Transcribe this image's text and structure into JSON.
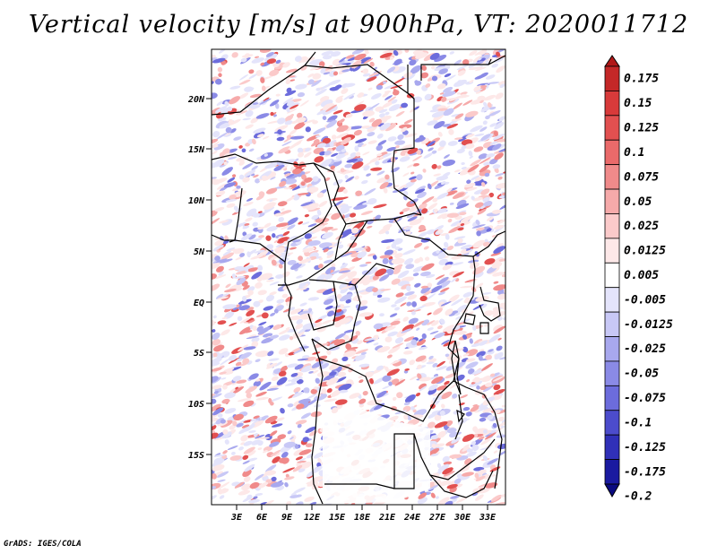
{
  "title": "Vertical velocity [m/s] at 900hPa, VT: 2020011712",
  "credit": "GrADS: IGES/COLA",
  "map": {
    "lat_labels": [
      "20N",
      "15N",
      "10N",
      "5N",
      "EQ",
      "5S",
      "10S",
      "15S"
    ],
    "lon_labels": [
      "3E",
      "6E",
      "9E",
      "12E",
      "15E",
      "18E",
      "21E",
      "24E",
      "27E",
      "30E",
      "33E"
    ]
  },
  "colorbar": {
    "levels": [
      "0.175",
      "0.15",
      "0.125",
      "0.1",
      "0.075",
      "0.05",
      "0.025",
      "0.0125",
      "0.005",
      "-0.005",
      "-0.0125",
      "-0.025",
      "-0.05",
      "-0.075",
      "-0.1",
      "-0.125",
      "-0.175",
      "-0.2"
    ],
    "colors": [
      "#b01818",
      "#c42828",
      "#d83a3a",
      "#e25050",
      "#ea6a6a",
      "#f08a8a",
      "#f6aaaa",
      "#fbcaca",
      "#fde8e8",
      "#ffffff",
      "#e4e4fb",
      "#c8c8f6",
      "#a8a8ee",
      "#8a8ae6",
      "#6c6cdc",
      "#4c4ccc",
      "#3030b8",
      "#1a1aa0",
      "#0a0a80"
    ]
  }
}
